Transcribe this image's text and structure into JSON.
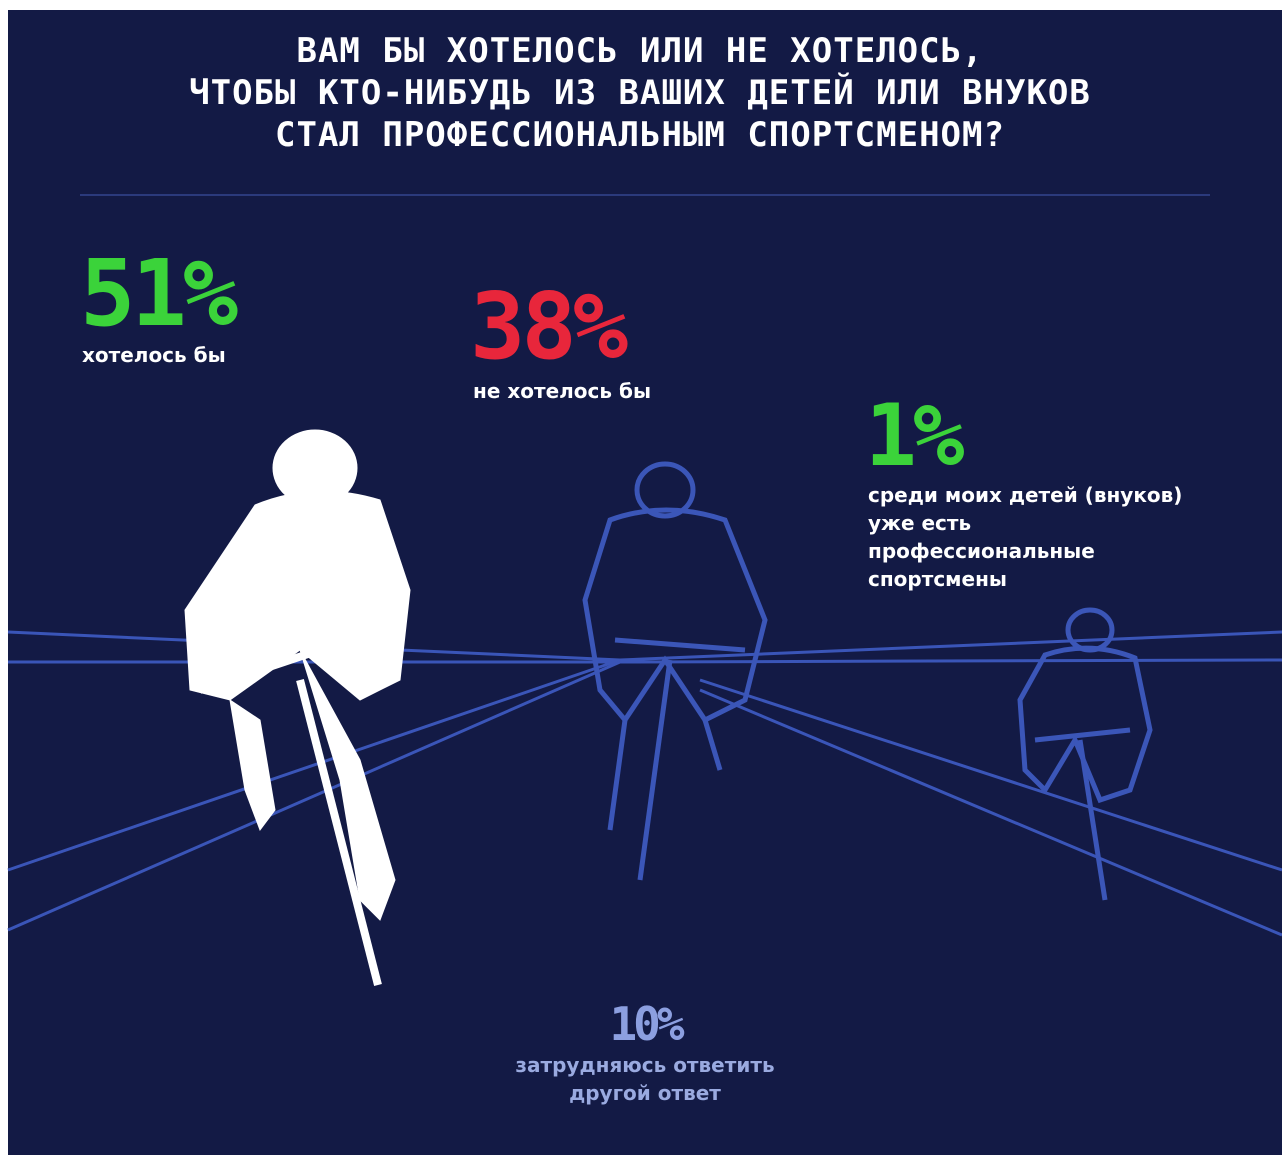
{
  "header": {
    "title_lines": [
      "ВАМ БЫ ХОТЕЛОСЬ ИЛИ НЕ ХОТЕЛОСЬ,",
      "ЧТОБЫ КТО-НИБУДЬ ИЗ ВАШИХ ДЕТЕЙ ИЛИ ВНУКОВ",
      "СТАЛ ПРОФЕССИОНАЛЬНЫМ СПОРТСМЕНОМ?"
    ]
  },
  "stats": [
    {
      "value": "51%",
      "label_lines": [
        "хотелось бы"
      ]
    },
    {
      "value": "38%",
      "label_lines": [
        "не хотелось бы"
      ]
    },
    {
      "value": "1%",
      "label_lines": [
        "среди моих детей (внуков)",
        "уже есть",
        "профессиональные",
        "спортсмены"
      ]
    },
    {
      "value": "10%",
      "label_lines": [
        "затрудняюсь ответить",
        "другой ответ"
      ]
    }
  ]
}
